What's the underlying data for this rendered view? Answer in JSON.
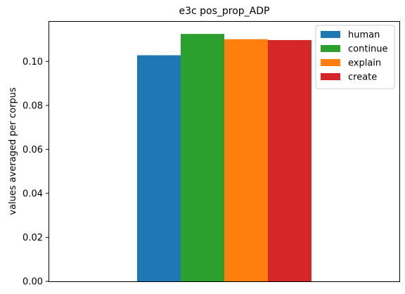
{
  "chart_data": {
    "type": "bar",
    "title": "e3c pos_prop_ADP",
    "xlabel": "",
    "ylabel": "values averaged per corpus",
    "ylim": [
      0,
      0.118
    ],
    "yticks": [
      "0.00",
      "0.02",
      "0.04",
      "0.06",
      "0.08",
      "0.10"
    ],
    "grid": false,
    "legend_position": "top-right",
    "series": [
      {
        "name": "human",
        "value": 0.1028,
        "color": "#1f77b4"
      },
      {
        "name": "continue",
        "value": 0.1125,
        "color": "#2ca02c"
      },
      {
        "name": "explain",
        "value": 0.1101,
        "color": "#ff7f0e"
      },
      {
        "name": "create",
        "value": 0.1097,
        "color": "#d62728"
      }
    ]
  }
}
